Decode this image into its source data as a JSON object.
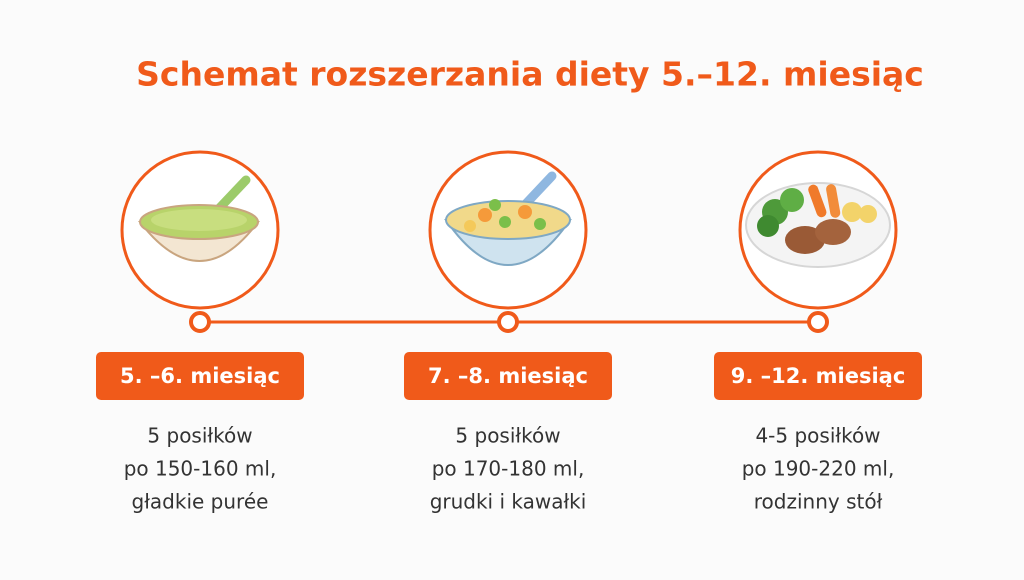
{
  "title": "Schemat rozszerzania diety 5.–12. miesiąc",
  "stages": [
    {
      "label": "5. –6. miesiąc",
      "lines": [
        "5 posiłków",
        "po 150-160 ml,",
        "gładkie purée"
      ]
    },
    {
      "label": "7. –8. miesiąc",
      "lines": [
        "5 posiłków",
        "po 170-180 ml,",
        "grudki i kawałki"
      ]
    },
    {
      "label": "9. –12. miesiąc",
      "lines": [
        "4-5 posiłków",
        "po 190-220 ml,",
        "rodzinny stół"
      ]
    }
  ]
}
